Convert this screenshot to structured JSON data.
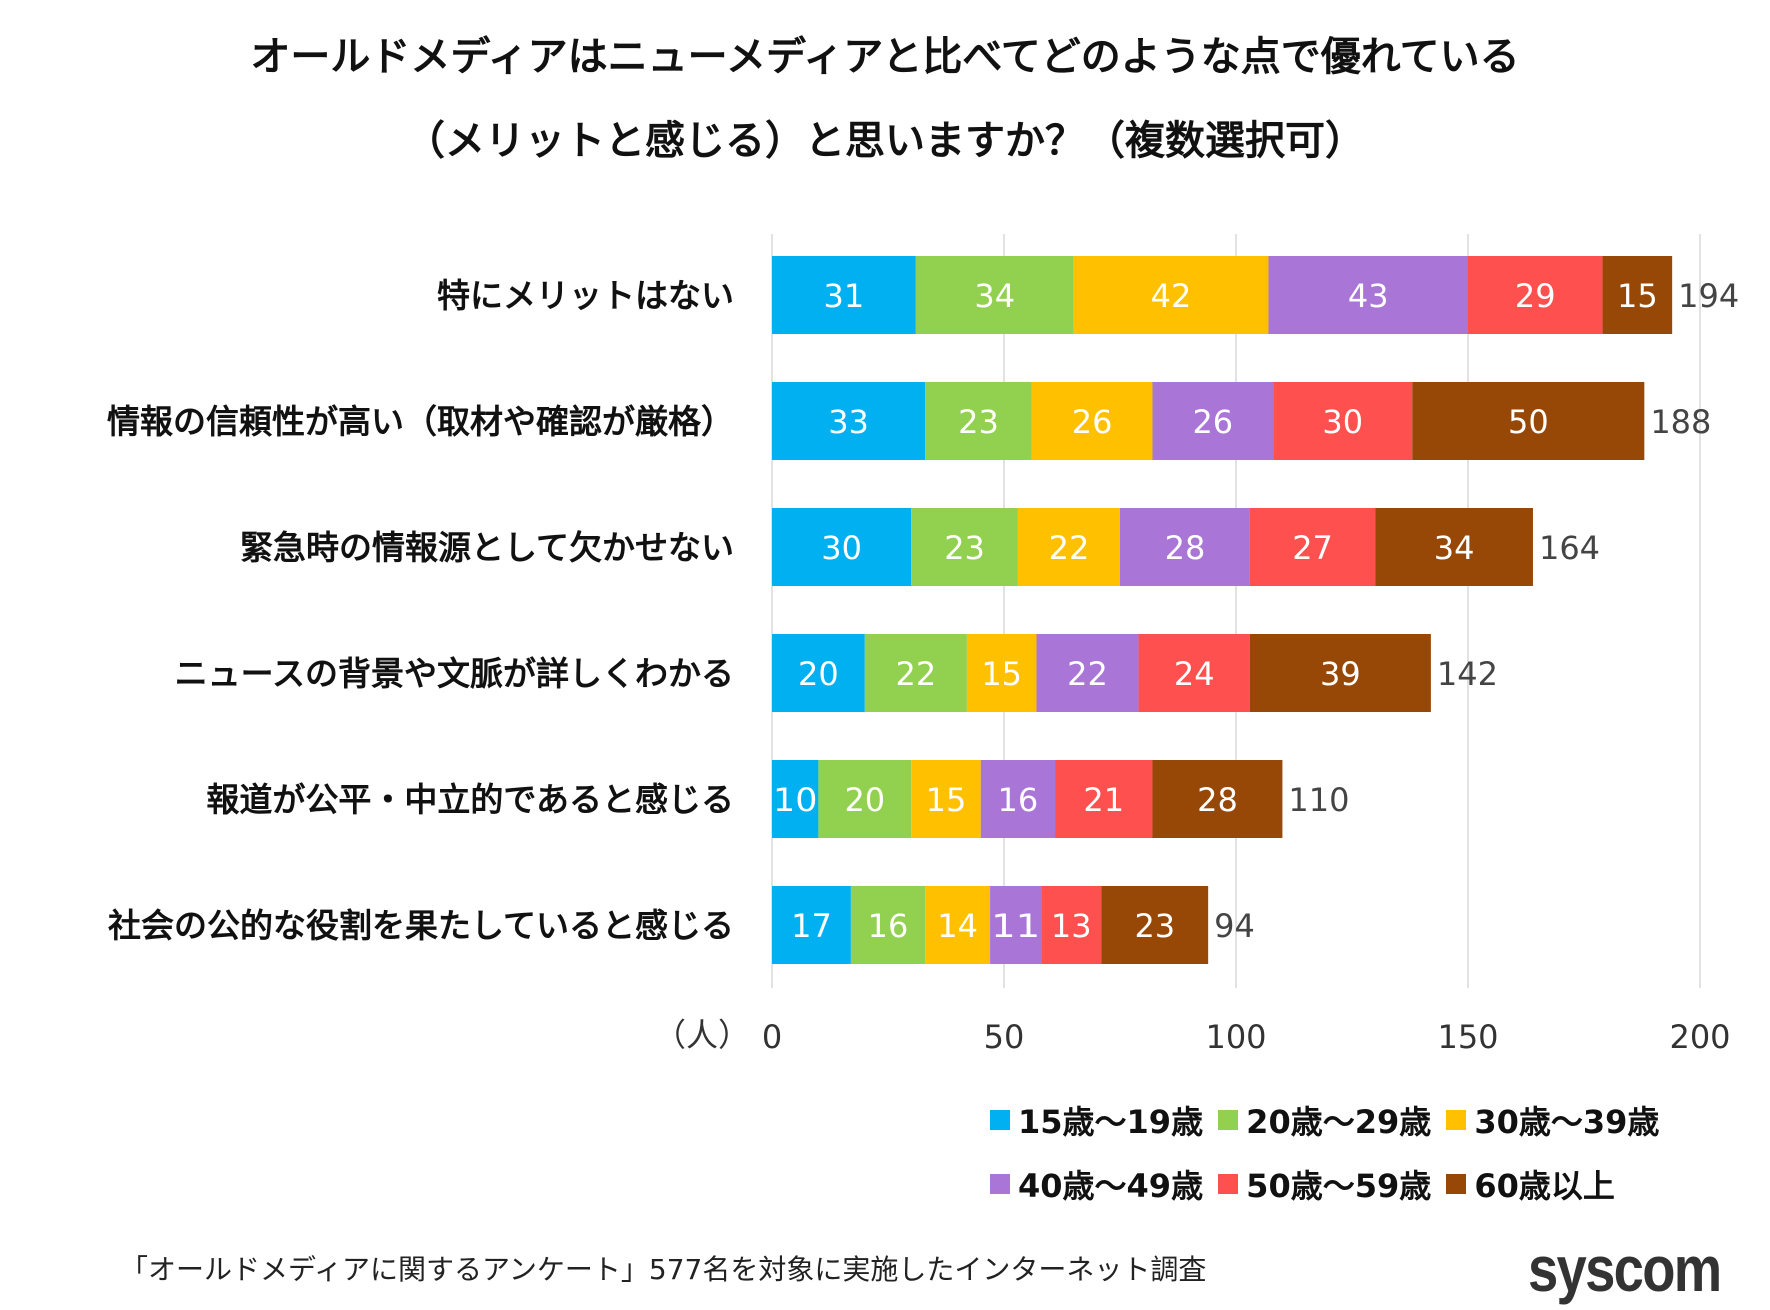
{
  "chart_data": {
    "type": "bar",
    "orientation": "horizontal",
    "stacked": true,
    "title": "オールドメディアはニューメディアと比べてどのような点で優れている（メリットと感じる）と思いますか？（複数選択可）",
    "title_lines": [
      "オールドメディアはニューメディアと比べてどのような点で優れている",
      "（メリットと感じる）と思いますか？（複数選択可）"
    ],
    "categories": [
      "特にメリットはない",
      "情報の信頼性が高い（取材や確認が厳格）",
      "緊急時の情報源として欠かせない",
      "ニュースの背景や文脈が詳しくわかる",
      "報道が公平・中立的であると感じる",
      "社会の公的な役割を果たしていると感じる"
    ],
    "series": [
      {
        "name": "15歳～19歳",
        "color": "#00B0F0",
        "values": [
          31,
          33,
          30,
          20,
          10,
          17
        ]
      },
      {
        "name": "20歳～29歳",
        "color": "#92D050",
        "values": [
          34,
          23,
          23,
          22,
          20,
          16
        ]
      },
      {
        "name": "30歳～39歳",
        "color": "#FFC000",
        "values": [
          42,
          26,
          22,
          15,
          15,
          14
        ]
      },
      {
        "name": "40歳～49歳",
        "color": "#A975D6",
        "values": [
          43,
          26,
          28,
          22,
          16,
          11
        ]
      },
      {
        "name": "50歳～59歳",
        "color": "#FF5050",
        "values": [
          29,
          30,
          27,
          24,
          21,
          13
        ]
      },
      {
        "name": "60歳以上",
        "color": "#974706",
        "values": [
          15,
          50,
          34,
          39,
          28,
          23
        ]
      }
    ],
    "totals": [
      194,
      188,
      164,
      142,
      110,
      94
    ],
    "xlabel": "（人）",
    "xlim": [
      0,
      200
    ],
    "xticks": [
      0,
      50,
      100,
      150,
      200
    ],
    "grid": true,
    "legend": "bottom-right"
  },
  "footer": "「オールドメディアに関するアンケート」577名を対象に実施したインターネット調査",
  "logo": "syscom"
}
